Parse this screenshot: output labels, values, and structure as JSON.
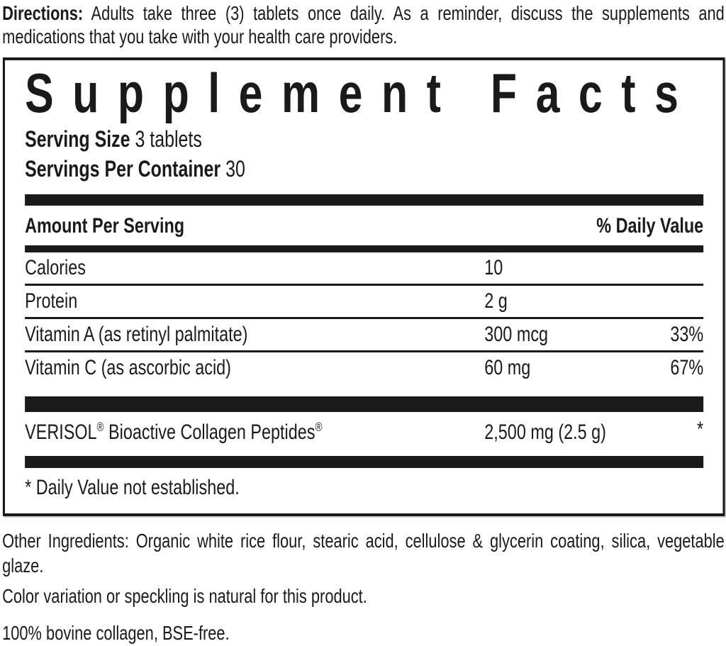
{
  "colors": {
    "ink": "#1a1a1a",
    "background": "#ffffff"
  },
  "directions": {
    "label": "Directions:",
    "text": "Adults take three (3) tablets once daily. As a reminder, discuss the supplements and medications that you take with your health care providers."
  },
  "panel": {
    "title": "Supplement Facts",
    "serving_size_label": "Serving Size",
    "serving_size_value": "3 tablets",
    "servings_per_container_label": "Servings Per Container",
    "servings_per_container_value": "30",
    "header": {
      "amount_label": "Amount Per Serving",
      "daily_value_label": "% Daily Value"
    },
    "rows": [
      {
        "name": "Calories",
        "amount": "10",
        "dv": ""
      },
      {
        "name": "Protein",
        "amount": "2 g",
        "dv": ""
      },
      {
        "name": "Vitamin A (as retinyl palmitate)",
        "amount": "300 mcg",
        "dv": "33%"
      },
      {
        "name": "Vitamin C (as ascorbic acid)",
        "amount": "60 mg",
        "dv": "67%"
      }
    ],
    "proprietary_row": {
      "brand": "VERISOL",
      "reg_mark_1": "®",
      "name_rest": " Bioactive Collagen Peptides",
      "reg_mark_2": "®",
      "amount": "2,500 mg (2.5 g)",
      "dv": "*"
    },
    "footnote": "* Daily Value not established."
  },
  "notes": {
    "other_ingredients": "Other Ingredients: Organic white rice flour, stearic acid, cellulose & glycerin coating, silica, vegetable glaze.",
    "color_note": "Color variation or speckling is natural for this product.",
    "bovine_note": "100% bovine collagen, BSE-free."
  }
}
